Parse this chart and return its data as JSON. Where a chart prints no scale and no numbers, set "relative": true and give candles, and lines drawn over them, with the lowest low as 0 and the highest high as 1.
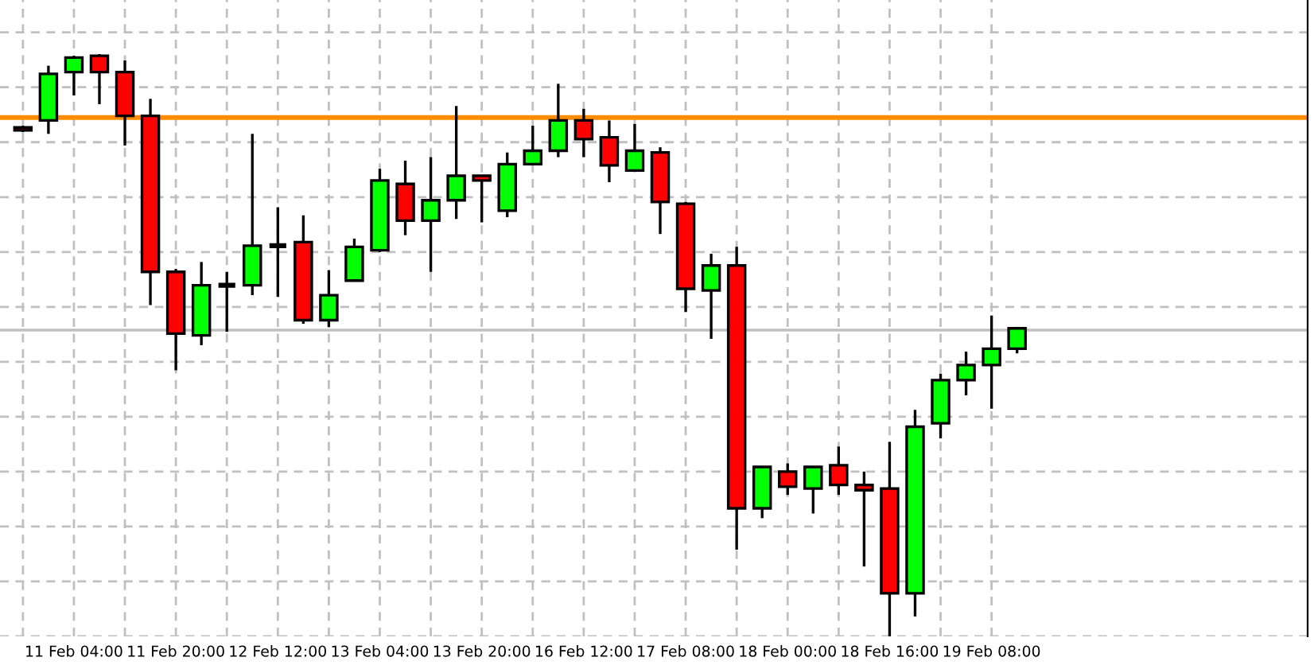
{
  "chart_data": {
    "type": "candlestick",
    "relative": true,
    "categories": [
      null,
      null,
      "11 Feb 04:00",
      null,
      null,
      null,
      "11 Feb 20:00",
      null,
      null,
      null,
      "12 Feb 12:00",
      null,
      null,
      null,
      "13 Feb 04:00",
      null,
      null,
      null,
      "13 Feb 20:00",
      null,
      null,
      null,
      "16 Feb 12:00",
      null,
      null,
      null,
      "17 Feb 08:00",
      null,
      null,
      null,
      "18 Feb 00:00",
      null,
      null,
      null,
      "18 Feb 16:00",
      null,
      null,
      null,
      "19 Feb 08:00",
      null
    ],
    "ohlc": [
      [
        0.874,
        0.877,
        0.866,
        0.869
      ],
      [
        0.886,
        0.98,
        0.863,
        0.966
      ],
      [
        0.969,
        0.997,
        0.929,
        0.994
      ],
      [
        0.997,
        1.0,
        0.914,
        0.969
      ],
      [
        0.969,
        0.989,
        0.843,
        0.894
      ],
      [
        0.894,
        0.923,
        0.569,
        0.626
      ],
      [
        0.626,
        0.631,
        0.457,
        0.52
      ],
      [
        0.517,
        0.643,
        0.5,
        0.603
      ],
      [
        0.603,
        0.626,
        0.523,
        0.603
      ],
      [
        0.603,
        0.863,
        0.586,
        0.671
      ],
      [
        0.671,
        0.737,
        0.583,
        0.671
      ],
      [
        0.677,
        0.723,
        0.537,
        0.543
      ],
      [
        0.543,
        0.629,
        0.531,
        0.586
      ],
      [
        0.611,
        0.683,
        0.611,
        0.669
      ],
      [
        0.663,
        0.803,
        0.66,
        0.783
      ],
      [
        0.777,
        0.817,
        0.689,
        0.714
      ],
      [
        0.714,
        0.823,
        0.626,
        0.749
      ],
      [
        0.749,
        0.911,
        0.717,
        0.791
      ],
      [
        0.791,
        0.791,
        0.711,
        0.783
      ],
      [
        0.731,
        0.831,
        0.72,
        0.811
      ],
      [
        0.811,
        0.877,
        0.811,
        0.834
      ],
      [
        0.834,
        0.949,
        0.823,
        0.886
      ],
      [
        0.886,
        0.906,
        0.823,
        0.854
      ],
      [
        0.857,
        0.886,
        0.78,
        0.809
      ],
      [
        0.8,
        0.88,
        0.8,
        0.834
      ],
      [
        0.831,
        0.84,
        0.691,
        0.746
      ],
      [
        0.743,
        0.746,
        0.557,
        0.597
      ],
      [
        0.594,
        0.657,
        0.511,
        0.637
      ],
      [
        0.637,
        0.669,
        0.149,
        0.22
      ],
      [
        0.22,
        0.291,
        0.203,
        0.291
      ],
      [
        0.283,
        0.297,
        0.243,
        0.257
      ],
      [
        0.254,
        0.291,
        0.211,
        0.291
      ],
      [
        0.294,
        0.326,
        0.243,
        0.26
      ],
      [
        0.26,
        0.283,
        0.12,
        0.251
      ],
      [
        0.254,
        0.334,
        0.0,
        0.074
      ],
      [
        0.074,
        0.389,
        0.034,
        0.36
      ],
      [
        0.366,
        0.451,
        0.34,
        0.44
      ],
      [
        0.44,
        0.489,
        0.414,
        0.466
      ],
      [
        0.466,
        0.551,
        0.391,
        0.494
      ],
      [
        0.494,
        0.529,
        0.486,
        0.529
      ]
    ],
    "colors": [
      "#ff0000",
      "#00ff00",
      "#00ff00",
      "#ff0000",
      "#ff0000",
      "#ff0000",
      "#ff0000",
      "#00ff00",
      "#000000",
      "#00ff00",
      "#000000",
      "#ff0000",
      "#00ff00",
      "#00ff00",
      "#00ff00",
      "#ff0000",
      "#00ff00",
      "#00ff00",
      "#ff0000",
      "#00ff00",
      "#00ff00",
      "#00ff00",
      "#ff0000",
      "#ff0000",
      "#00ff00",
      "#ff0000",
      "#ff0000",
      "#00ff00",
      "#ff0000",
      "#00ff00",
      "#ff0000",
      "#00ff00",
      "#ff0000",
      "#ff0000",
      "#ff0000",
      "#00ff00",
      "#00ff00",
      "#00ff00",
      "#00ff00",
      "#00ff00"
    ],
    "ref_lines": [
      {
        "axis": "y",
        "value": 0.891,
        "color": "#ff8c00",
        "line_style": "solid"
      },
      {
        "axis": "y",
        "value": 0.526,
        "color": "#c0c0c0",
        "line_style": "solid"
      }
    ],
    "grid": true
  }
}
